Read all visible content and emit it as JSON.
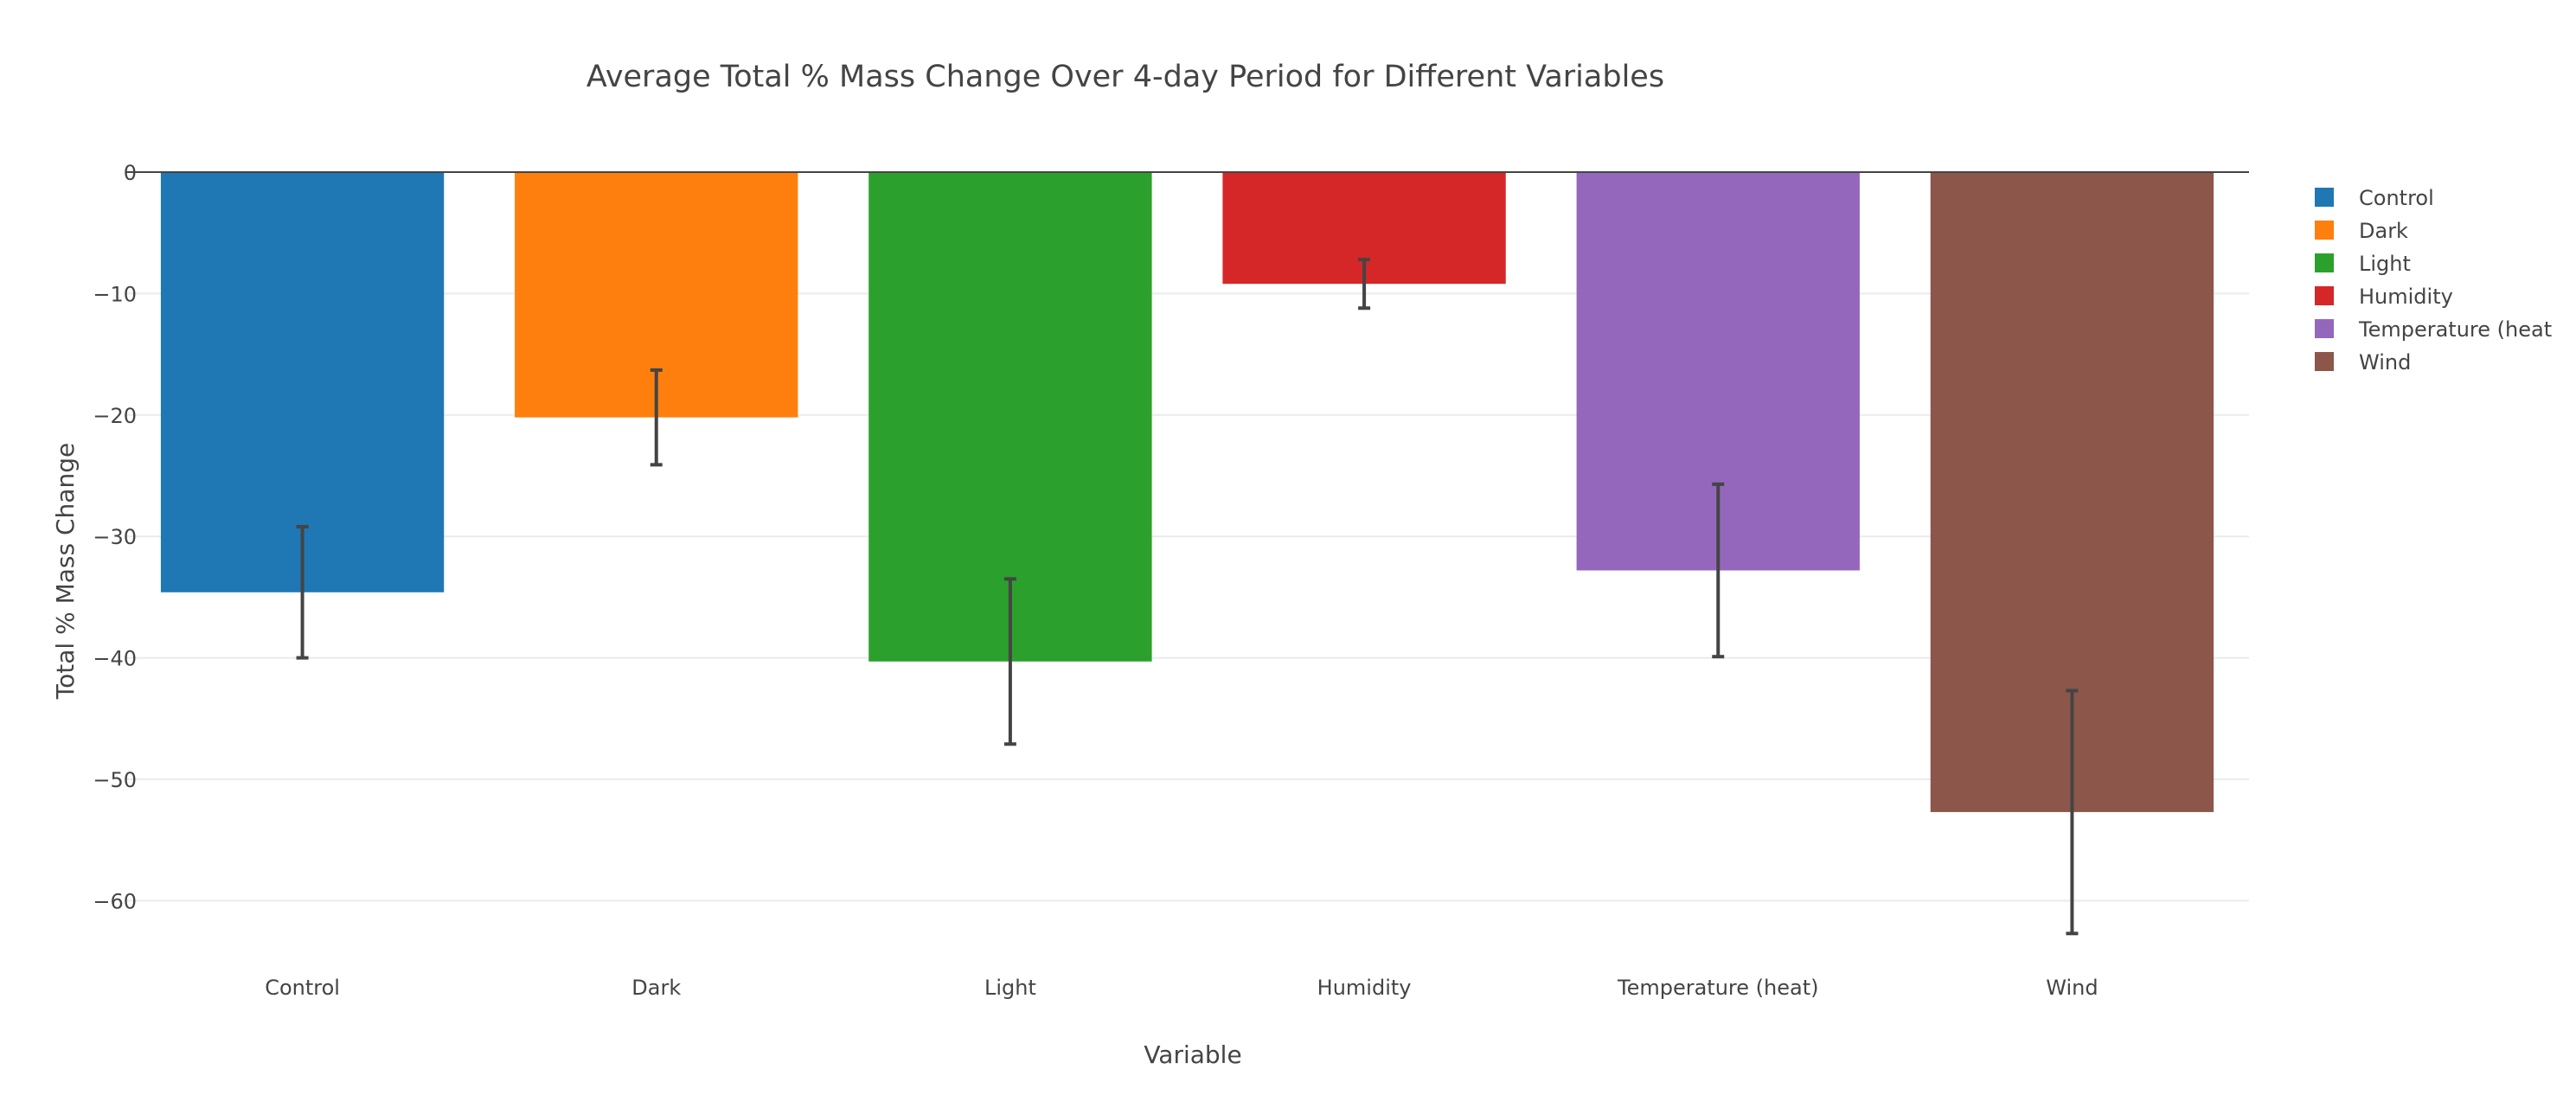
{
  "chart_data": {
    "type": "bar",
    "title": "Average Total % Mass Change Over 4-day Period for Different Variables",
    "xlabel": "Variable",
    "ylabel": "Total % Mass Change",
    "categories": [
      "Control",
      "Dark",
      "Light",
      "Humidity",
      "Temperature (heat)",
      "Wind"
    ],
    "values": [
      -34.6,
      -20.2,
      -40.3,
      -9.2,
      -32.8,
      -52.7
    ],
    "error": [
      5.4,
      3.9,
      6.8,
      2.0,
      7.1,
      10.0
    ],
    "colors": [
      "#1f77b4",
      "#ff7f0e",
      "#2ca02c",
      "#d62728",
      "#9467bd",
      "#8c564b"
    ],
    "ylim": [
      -65,
      0
    ],
    "yticks": [
      0,
      -10,
      -20,
      -30,
      -40,
      -50,
      -60
    ],
    "ytick_labels": [
      "0",
      "−10",
      "−20",
      "−30",
      "−40",
      "−50",
      "−60"
    ],
    "grid": true,
    "legend_position": "top-right",
    "legend": [
      "Control",
      "Dark",
      "Light",
      "Humidity",
      "Temperature (heat",
      "Wind"
    ]
  }
}
